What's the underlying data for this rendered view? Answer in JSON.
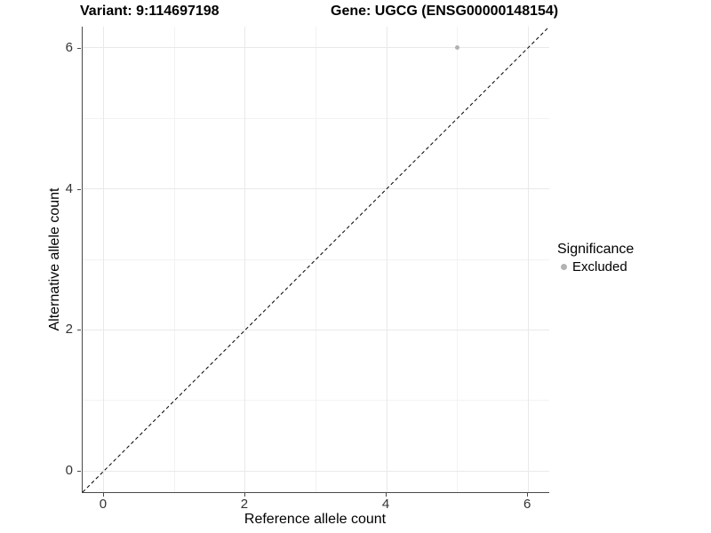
{
  "titles": {
    "variant": "Variant: 9:114697198",
    "gene": "Gene: UGCG (ENSG00000148154)"
  },
  "chart_data": {
    "type": "scatter",
    "xlabel": "Reference allele count",
    "ylabel": "Alternative allele count",
    "xlim": [
      -0.3,
      6.3
    ],
    "ylim": [
      -0.3,
      6.3
    ],
    "xticks": [
      0,
      2,
      4,
      6
    ],
    "yticks": [
      0,
      2,
      4,
      6
    ],
    "minor_ticks_x": [
      1,
      3,
      5
    ],
    "minor_ticks_y": [
      1,
      3,
      5
    ],
    "grid": true,
    "identity_line": {
      "style": "dashed",
      "from": [
        -0.3,
        -0.3
      ],
      "to": [
        6.3,
        6.3
      ],
      "color": "#000000"
    },
    "points": [
      {
        "x": 5,
        "y": 6,
        "significance": "Excluded",
        "color": "#b2b2b2",
        "size": 5
      }
    ],
    "legend": {
      "title": "Significance",
      "position": "right",
      "entries": [
        {
          "label": "Excluded",
          "color": "#b2b2b2"
        }
      ]
    }
  },
  "colors": {
    "background": "#ffffff",
    "grid_major": "#e9e9e9",
    "grid_minor": "#f2f2f2",
    "axis_line": "#4a4a4a",
    "tick_text": "#333333",
    "title_text": "#000000"
  }
}
